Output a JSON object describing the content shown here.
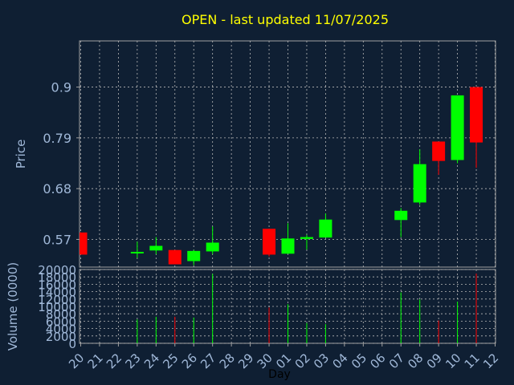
{
  "chart_data": {
    "type": "candlestick",
    "title": "OPEN - last updated 11/07/2025",
    "xlabel": "Day",
    "ylabel_price": "Price",
    "ylabel_volume": "Volume (0000)",
    "categories": [
      "20",
      "21",
      "22",
      "23",
      "24",
      "25",
      "26",
      "27",
      "28",
      "29",
      "30",
      "01",
      "02",
      "03",
      "04",
      "05",
      "06",
      "07",
      "08",
      "09",
      "10",
      "11",
      "12"
    ],
    "price_ticks": [
      "0.57",
      "0.68",
      "0.79",
      "0.9"
    ],
    "price_tick_values": [
      0.57,
      0.68,
      0.79,
      0.9
    ],
    "price_ylim": [
      0.51,
      1.0
    ],
    "volume_ticks": [
      "0",
      "2000",
      "4000",
      "6000",
      "8000",
      "10000",
      "12000",
      "14000",
      "16000",
      "18000",
      "20000"
    ],
    "volume_ylim": [
      0,
      20000
    ],
    "grid": true,
    "colors": {
      "background": "#0f1f33",
      "up": "#00ff00",
      "down": "#ff0000",
      "title": "#ffff00",
      "axis_text": "#a0b8d8",
      "frame": "#a0a0a0",
      "grid": "#b8b8b8"
    },
    "candles": [
      {
        "day": "20",
        "open": 0.585,
        "close": 0.537,
        "high": 0.585,
        "low": 0.537,
        "volume": 0
      },
      {
        "day": "23",
        "open": 0.541,
        "close": 0.543,
        "high": 0.565,
        "low": 0.53,
        "volume": 6500
      },
      {
        "day": "24",
        "open": 0.546,
        "close": 0.556,
        "high": 0.575,
        "low": 0.538,
        "volume": 7200
      },
      {
        "day": "25",
        "open": 0.547,
        "close": 0.516,
        "high": 0.547,
        "low": 0.516,
        "volume": 7200
      },
      {
        "day": "26",
        "open": 0.523,
        "close": 0.545,
        "high": 0.547,
        "low": 0.514,
        "volume": 7000
      },
      {
        "day": "27",
        "open": 0.544,
        "close": 0.563,
        "high": 0.598,
        "low": 0.538,
        "volume": 18800
      },
      {
        "day": "30",
        "open": 0.593,
        "close": 0.537,
        "high": 0.593,
        "low": 0.533,
        "volume": 9700
      },
      {
        "day": "01",
        "open": 0.539,
        "close": 0.572,
        "high": 0.605,
        "low": 0.539,
        "volume": 10600
      },
      {
        "day": "02",
        "open": 0.571,
        "close": 0.575,
        "high": 0.58,
        "low": 0.548,
        "volume": 5500
      },
      {
        "day": "03",
        "open": 0.574,
        "close": 0.613,
        "high": 0.626,
        "low": 0.574,
        "volume": 5200
      },
      {
        "day": "07",
        "open": 0.612,
        "close": 0.632,
        "high": 0.638,
        "low": 0.575,
        "volume": 13800
      },
      {
        "day": "08",
        "open": 0.65,
        "close": 0.733,
        "high": 0.765,
        "low": 0.645,
        "volume": 11900
      },
      {
        "day": "09",
        "open": 0.782,
        "close": 0.74,
        "high": 0.782,
        "low": 0.71,
        "volume": 6200
      },
      {
        "day": "10",
        "open": 0.742,
        "close": 0.882,
        "high": 0.882,
        "low": 0.735,
        "volume": 11300
      },
      {
        "day": "11",
        "open": 0.9,
        "close": 0.78,
        "high": 0.9,
        "low": 0.725,
        "volume": 18900
      }
    ]
  }
}
